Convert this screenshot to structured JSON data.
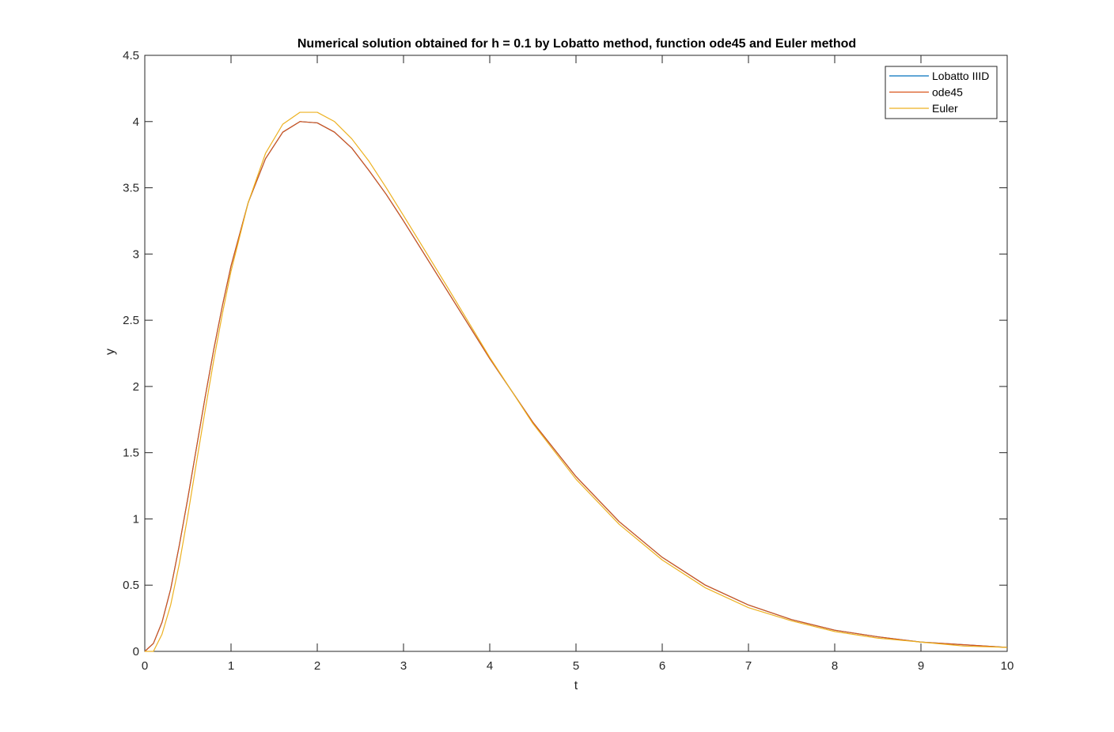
{
  "chart_data": {
    "type": "line",
    "title": "Numerical solution obtained for h = 0.1 by Lobatto method, function ode45 and Euler method",
    "xlabel": "t",
    "ylabel": "y",
    "xlim": [
      0,
      10
    ],
    "ylim": [
      0,
      4.5
    ],
    "xticks": [
      "0",
      "1",
      "2",
      "3",
      "4",
      "5",
      "6",
      "7",
      "8",
      "9",
      "10"
    ],
    "yticks": [
      "0",
      "0.5",
      "1",
      "1.5",
      "2",
      "2.5",
      "3",
      "3.5",
      "4",
      "4.5"
    ],
    "grid": false,
    "legend_position": "top-right",
    "series": [
      {
        "name": "Lobatto IIID",
        "color": "#0072BD",
        "x": [
          0,
          0.1,
          0.2,
          0.3,
          0.4,
          0.5,
          0.6,
          0.7,
          0.8,
          0.9,
          1.0,
          1.2,
          1.4,
          1.6,
          1.8,
          2.0,
          2.2,
          2.4,
          2.6,
          2.8,
          3.0,
          3.5,
          4.0,
          4.5,
          5.0,
          5.5,
          6.0,
          6.5,
          7.0,
          7.5,
          8.0,
          8.5,
          9.0,
          9.5,
          10.0
        ],
        "y": [
          0,
          0.06,
          0.22,
          0.47,
          0.8,
          1.16,
          1.54,
          1.92,
          2.28,
          2.61,
          2.91,
          3.39,
          3.72,
          3.92,
          4.0,
          3.99,
          3.92,
          3.8,
          3.63,
          3.45,
          3.25,
          2.73,
          2.21,
          1.73,
          1.32,
          0.98,
          0.71,
          0.5,
          0.35,
          0.24,
          0.16,
          0.11,
          0.07,
          0.05,
          0.03
        ]
      },
      {
        "name": "ode45",
        "color": "#D95319",
        "x": [
          0,
          0.1,
          0.2,
          0.3,
          0.4,
          0.5,
          0.6,
          0.7,
          0.8,
          0.9,
          1.0,
          1.2,
          1.4,
          1.6,
          1.8,
          2.0,
          2.2,
          2.4,
          2.6,
          2.8,
          3.0,
          3.5,
          4.0,
          4.5,
          5.0,
          5.5,
          6.0,
          6.5,
          7.0,
          7.5,
          8.0,
          8.5,
          9.0,
          9.5,
          10.0
        ],
        "y": [
          0,
          0.06,
          0.22,
          0.47,
          0.8,
          1.16,
          1.54,
          1.92,
          2.28,
          2.61,
          2.91,
          3.39,
          3.72,
          3.92,
          4.0,
          3.99,
          3.92,
          3.8,
          3.63,
          3.45,
          3.25,
          2.73,
          2.21,
          1.73,
          1.32,
          0.98,
          0.71,
          0.5,
          0.35,
          0.24,
          0.16,
          0.11,
          0.07,
          0.05,
          0.03
        ]
      },
      {
        "name": "Euler",
        "color": "#EDB120",
        "x": [
          0,
          0.1,
          0.2,
          0.3,
          0.4,
          0.5,
          0.6,
          0.7,
          0.8,
          0.9,
          1.0,
          1.2,
          1.4,
          1.6,
          1.8,
          2.0,
          2.2,
          2.4,
          2.6,
          2.8,
          3.0,
          3.5,
          4.0,
          4.5,
          5.0,
          5.5,
          6.0,
          6.5,
          7.0,
          7.5,
          8.0,
          8.5,
          9.0,
          9.5,
          10.0
        ],
        "y": [
          0,
          0,
          0.13,
          0.35,
          0.66,
          1.03,
          1.43,
          1.82,
          2.2,
          2.55,
          2.87,
          3.39,
          3.76,
          3.98,
          4.07,
          4.07,
          4.0,
          3.87,
          3.7,
          3.5,
          3.29,
          2.76,
          2.22,
          1.72,
          1.3,
          0.96,
          0.69,
          0.48,
          0.33,
          0.23,
          0.15,
          0.1,
          0.07,
          0.04,
          0.03
        ]
      }
    ]
  }
}
